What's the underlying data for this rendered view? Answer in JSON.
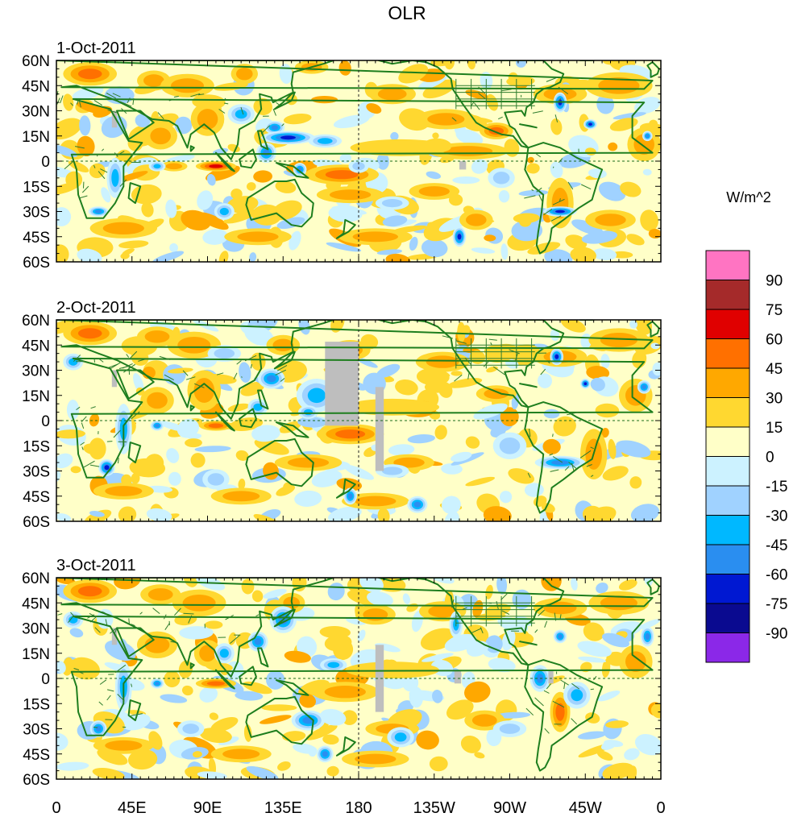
{
  "title": "OLR",
  "units": "W/m^2",
  "panels": [
    {
      "date": "1-Oct-2011"
    },
    {
      "date": "2-Oct-2011"
    },
    {
      "date": "3-Oct-2011"
    }
  ],
  "lat_labels": [
    "60N",
    "45N",
    "30N",
    "15N",
    "0",
    "15S",
    "30S",
    "45S",
    "60S"
  ],
  "lon_labels": [
    "0",
    "45E",
    "90E",
    "135E",
    "180",
    "135W",
    "90W",
    "45W",
    "0"
  ],
  "colorbar": {
    "levels": [
      "90",
      "75",
      "60",
      "45",
      "30",
      "15",
      "0",
      "-15",
      "-30",
      "-45",
      "-60",
      "-75",
      "-90"
    ],
    "colors": [
      "#ff74c2",
      "#a52a2a",
      "#e00000",
      "#ff7000",
      "#ffa800",
      "#ffd830",
      "#ffffc8",
      "#ccf2ff",
      "#a0d2ff",
      "#00b8ff",
      "#2a8ef0",
      "#0018d2",
      "#0a0a90",
      "#8b28e8"
    ]
  },
  "map_colors": {
    "coast": "#1e7e1e",
    "border": "#2e7d2e",
    "missing": "#bebebe"
  }
}
